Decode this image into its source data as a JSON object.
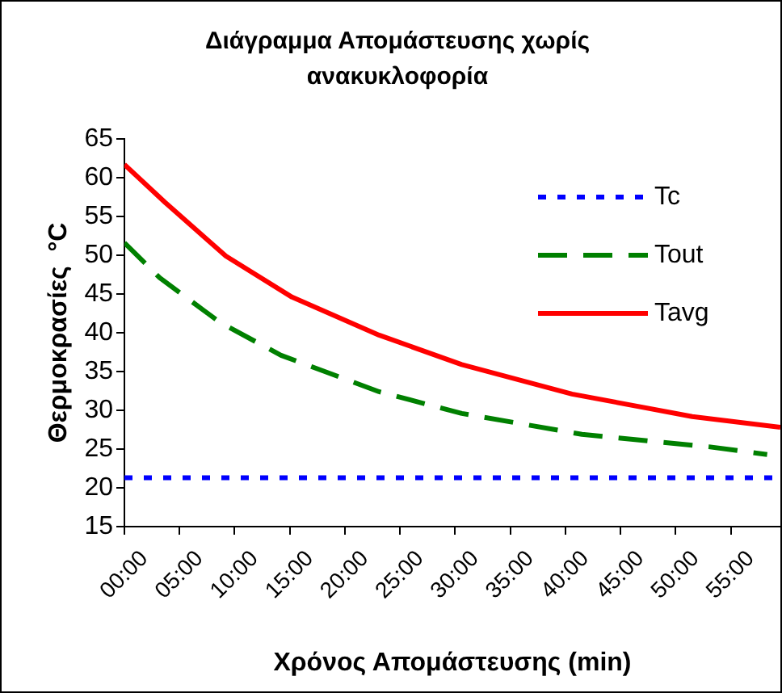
{
  "chart_data": {
    "type": "line",
    "title": "Διάγραμμα Απομάστευσης χωρίς ανακυκλοφορία",
    "xlabel": "Χρόνος Απομάστευσης (min)",
    "ylabel": "Θερμοκρασίες  °C",
    "xlim": [
      0,
      59.5
    ],
    "xticks": [
      {
        "value": 0,
        "label": "00:00"
      },
      {
        "value": 5,
        "label": "05:00"
      },
      {
        "value": 10,
        "label": "10:00"
      },
      {
        "value": 15,
        "label": "15:00"
      },
      {
        "value": 20,
        "label": "20:00"
      },
      {
        "value": 25,
        "label": "25:00"
      },
      {
        "value": 30,
        "label": "30:00"
      },
      {
        "value": 35,
        "label": "35:00"
      },
      {
        "value": 40,
        "label": "40:00"
      },
      {
        "value": 45,
        "label": "45:00"
      },
      {
        "value": 50,
        "label": "50:00"
      },
      {
        "value": 55,
        "label": "55:00"
      }
    ],
    "ylim": [
      15,
      65
    ],
    "yticks": [
      15,
      20,
      25,
      30,
      35,
      40,
      45,
      50,
      55,
      60,
      65
    ],
    "grid": false,
    "legend": "top right",
    "marker": "none",
    "series": [
      {
        "name": "Tc",
        "color": "#0000ff",
        "line_style": "dotted",
        "x": [
          0,
          59.5
        ],
        "values": [
          21.3,
          21.3
        ]
      },
      {
        "name": "Tout",
        "color": "#008000",
        "line_style": "dashed",
        "x": [
          0,
          3.2,
          8.7,
          14.2,
          19.7,
          23.1,
          30.6,
          41.5,
          53,
          58.3
        ],
        "values": [
          51.6,
          47.1,
          41.3,
          37.1,
          34.2,
          32.4,
          29.6,
          26.9,
          25.3,
          24.3
        ]
      },
      {
        "name": "Tavg",
        "color": "#ff0000",
        "line_style": "solid",
        "x": [
          0,
          3.7,
          9.2,
          15.2,
          23.1,
          30.6,
          40.6,
          51.5,
          59.5
        ],
        "values": [
          61.7,
          56.8,
          49.9,
          44.6,
          39.7,
          35.9,
          32.1,
          29.2,
          27.8
        ]
      }
    ]
  }
}
